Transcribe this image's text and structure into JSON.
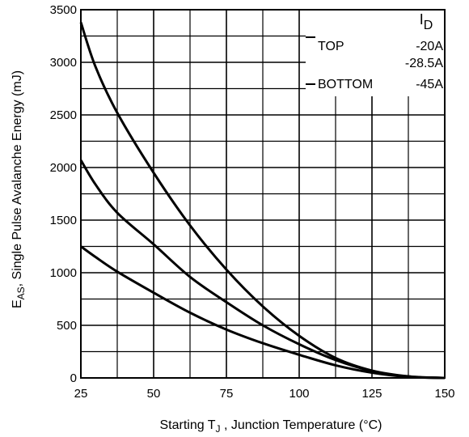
{
  "chart_data": {
    "type": "line",
    "xlabel": "Starting T",
    "xlabel_sub": "J",
    "xlabel_rest": " , Junction Temperature (°C)",
    "ylabel_main": "E",
    "ylabel_sub": "AS",
    "ylabel_rest": ",  Single Pulse Avalanche Energy (mJ)",
    "xlim": [
      25,
      150
    ],
    "ylim": [
      0,
      3500
    ],
    "xticks": [
      "25",
      "50",
      "75",
      "100",
      "125",
      "150"
    ],
    "yticks": [
      "0",
      "500",
      "1000",
      "1500",
      "2000",
      "2500",
      "3000",
      "3500"
    ],
    "grid": true,
    "legend": {
      "position": "top-right",
      "header_main": "I",
      "header_sub": "D",
      "rows": [
        {
          "label": "TOP",
          "value": "-20A"
        },
        {
          "label": "",
          "value": "-28.5A"
        },
        {
          "label": "BOTTOM",
          "value": "-45A"
        }
      ]
    },
    "series": [
      {
        "values": [
          [
            25,
            3380
          ],
          [
            30,
            2960
          ],
          [
            37.5,
            2520
          ],
          [
            50,
            1950
          ],
          [
            62.5,
            1450
          ],
          [
            75,
            1030
          ],
          [
            87.5,
            680
          ],
          [
            100,
            400
          ],
          [
            112.5,
            190
          ],
          [
            125,
            70
          ],
          [
            137.5,
            15
          ],
          [
            150,
            0
          ]
        ]
      },
      {
        "values": [
          [
            25,
            2070
          ],
          [
            30,
            1840
          ],
          [
            37.5,
            1570
          ],
          [
            50,
            1270
          ],
          [
            62.5,
            960
          ],
          [
            75,
            720
          ],
          [
            87.5,
            500
          ],
          [
            100,
            320
          ],
          [
            112.5,
            170
          ],
          [
            125,
            65
          ],
          [
            137.5,
            12
          ],
          [
            150,
            0
          ]
        ]
      },
      {
        "values": [
          [
            25,
            1250
          ],
          [
            30,
            1150
          ],
          [
            37.5,
            1010
          ],
          [
            50,
            810
          ],
          [
            62.5,
            620
          ],
          [
            75,
            460
          ],
          [
            87.5,
            330
          ],
          [
            100,
            220
          ],
          [
            112.5,
            120
          ],
          [
            125,
            50
          ],
          [
            137.5,
            10
          ],
          [
            150,
            0
          ]
        ]
      }
    ]
  }
}
